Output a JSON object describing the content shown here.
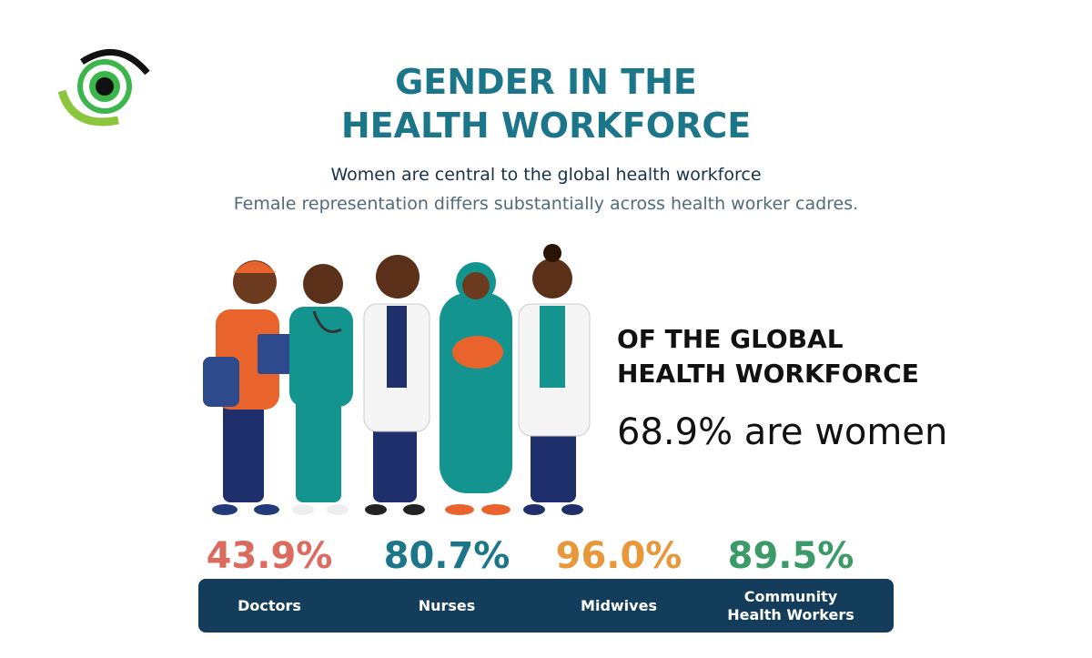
{
  "header": {
    "title_lines": [
      "GENDER IN THE",
      "HEALTH WORKFORCE"
    ],
    "subtitle": "Women are central to the global health workforce",
    "description": "Female representation differs substantially across health worker cadres."
  },
  "highlight": {
    "heading_lines": [
      "OF THE GLOBAL",
      "HEALTH WORKFORCE"
    ],
    "statement": "68.9% are women"
  },
  "cadres": [
    {
      "share": "43.9%",
      "label_lines": [
        "Doctors"
      ]
    },
    {
      "share": "80.7%",
      "label_lines": [
        "Nurses"
      ]
    },
    {
      "share": "96.0%",
      "label_lines": [
        "Midwives"
      ]
    },
    {
      "share": "89.5%",
      "label_lines": [
        "Community",
        "Health Workers"
      ]
    }
  ]
}
